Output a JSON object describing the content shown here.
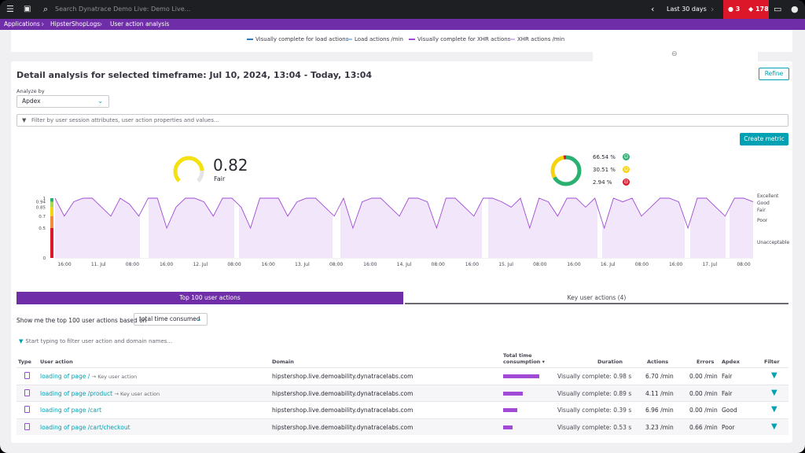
{
  "topbar": {
    "search_placeholder": "Search Dynatrace Demo Live: Demo Live...",
    "timeframe": "Last 30 days",
    "problems_count": "3",
    "security_count": "178"
  },
  "breadcrumb": [
    "Applications",
    "HipsterShopLogs",
    "User action analysis"
  ],
  "legend": [
    {
      "label": "Visually complete for load actions",
      "color": "#2f78c4"
    },
    {
      "label": "Load actions /min",
      "color": "#9fc6ea"
    },
    {
      "label": "Visually complete for XHR actions",
      "color": "#a04ad6"
    },
    {
      "label": "XHR actions /min",
      "color": "#d8b9ef"
    }
  ],
  "detail": {
    "title": "Detail analysis for selected timeframe: Jul 10, 2024, 13:04 - Today, 13:04",
    "refine_label": "Refine",
    "analyze_by_label": "Analyze by",
    "analyze_by_value": "Apdex",
    "filter_placeholder": "Filter by user session attributes, user action properties and values...",
    "create_metric_label": "Create metric"
  },
  "apdex": {
    "value": "0.82",
    "rating": "Fair",
    "fraction": 0.82
  },
  "distribution": [
    {
      "pct": "66.54 %",
      "value": 66.54,
      "color": "#2ab06f"
    },
    {
      "pct": "30.51 %",
      "value": 30.51,
      "color": "#f5d30f"
    },
    {
      "pct": "2.94 %",
      "value": 2.94,
      "color": "#dc172a"
    }
  ],
  "chart_data": {
    "type": "area",
    "y_ticks": [
      "1",
      "0.94",
      "0.85",
      "0.7",
      "0.5",
      "0"
    ],
    "y_values": [
      1,
      0.94,
      0.85,
      0.7,
      0.5,
      0
    ],
    "ylim": [
      0,
      1
    ],
    "x_ticks": [
      "16:00",
      "11. Jul",
      "08:00",
      "16:00",
      "12. Jul",
      "08:00",
      "16:00",
      "13. Jul",
      "08:00",
      "16:00",
      "14. Jul",
      "08:00",
      "16:00",
      "15. Jul",
      "08:00",
      "16:00",
      "16. Jul",
      "08:00",
      "16:00",
      "17. Jul",
      "08:00"
    ],
    "ratings": [
      "Excellent",
      "Good",
      "Fair",
      "Poor",
      "Unacceptable"
    ],
    "series": [
      {
        "values": [
          1,
          0.7,
          0.94,
          1,
          1,
          0.85,
          0.7,
          1,
          0.9,
          0.7,
          1,
          1,
          0.5,
          0.85,
          1,
          1,
          0.94,
          0.7,
          1,
          1,
          0.85,
          0.5,
          1,
          1,
          1,
          0.7,
          0.94,
          1,
          1,
          0.85,
          0.7,
          1,
          0.5,
          0.94,
          1,
          1,
          0.85,
          0.7,
          1,
          1,
          0.94,
          0.5,
          1,
          1,
          0.85,
          0.7,
          1,
          1,
          0.94,
          0.85,
          1,
          0.5,
          1,
          0.94,
          0.7,
          1,
          1,
          0.85,
          1,
          0.5,
          1,
          0.94,
          1,
          0.7,
          0.85,
          1,
          1,
          0.94,
          0.5,
          1,
          1,
          0.85,
          0.7,
          1,
          1,
          0.94
        ]
      }
    ]
  },
  "tabs": {
    "top_label": "Top 100 user actions",
    "key_label": "Key user actions (4)"
  },
  "based_on": {
    "label": "Show me the top 100 user actions based on",
    "value": "total time consumed"
  },
  "ua_filter_placeholder": "Start typing to filter user action and domain names...",
  "table": {
    "headers": {
      "type": "Type",
      "user_action": "User action",
      "domain": "Domain",
      "total_time_1": "Total time",
      "total_time_2": "consumption",
      "duration": "Duration",
      "actions": "Actions",
      "errors": "Errors",
      "apdex": "Apdex",
      "filter": "Filter"
    },
    "rows": [
      {
        "action": "loading of page /",
        "key": "Key user action",
        "domain": "hipstershop.live.demoability.dynatracelabs.com",
        "share": 1.0,
        "duration": "Visually complete: 0.98 s",
        "actions": "6.70 /min",
        "errors": "0.00 /min",
        "apdex": "Fair"
      },
      {
        "action": "loading of page /product",
        "key": "Key user action",
        "domain": "hipstershop.live.demoability.dynatracelabs.com",
        "share": 0.55,
        "duration": "Visually complete: 0.89 s",
        "actions": "4.11 /min",
        "errors": "0.00 /min",
        "apdex": "Fair"
      },
      {
        "action": "loading of page /cart",
        "key": "",
        "domain": "hipstershop.live.demoability.dynatracelabs.com",
        "share": 0.4,
        "duration": "Visually complete: 0.39 s",
        "actions": "6.96 /min",
        "errors": "0.00 /min",
        "apdex": "Good"
      },
      {
        "action": "loading of page /cart/checkout",
        "key": "",
        "domain": "hipstershop.live.demoability.dynatracelabs.com",
        "share": 0.27,
        "duration": "Visually complete: 0.53 s",
        "actions": "3.23 /min",
        "errors": "0.66 /min",
        "apdex": "Poor"
      }
    ]
  }
}
